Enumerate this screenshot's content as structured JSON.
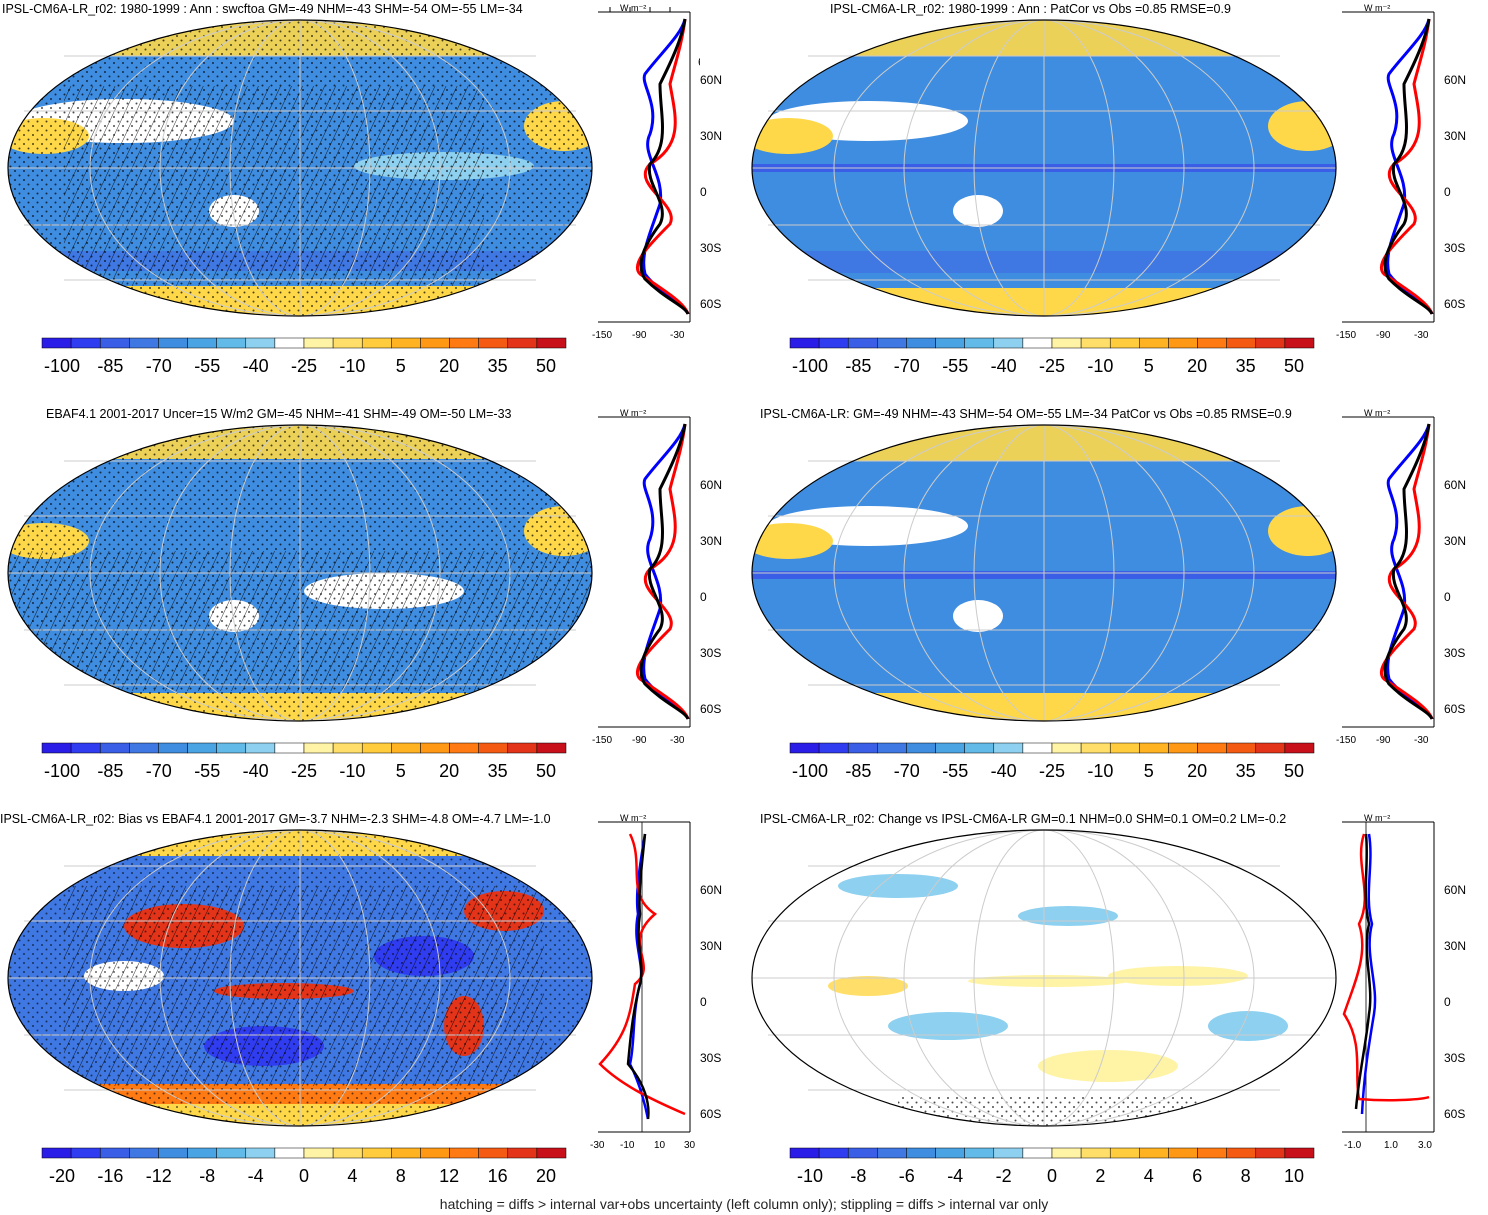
{
  "palette": [
    "#2a1de8",
    "#2f3cf0",
    "#3a5fe6",
    "#3f78e3",
    "#3f8de0",
    "#4aa3e3",
    "#62bae8",
    "#8dd0ef",
    "#ffffff",
    "#fff3a6",
    "#ffdf6a",
    "#ffcc3d",
    "#ffb322",
    "#ff9815",
    "#ff7a12",
    "#f55a12",
    "#e3341a",
    "#c8101a"
  ],
  "colors": {
    "ocean_blue": "#3f8de0",
    "land_yellow": "#ffd84a",
    "obs_line": "#0000ff",
    "model_line": "#000000",
    "bias_line": "#ff0000"
  },
  "profile_lat_labels": [
    "60N",
    "30N",
    "0",
    "30S",
    "60S"
  ],
  "profile_unit": "W m⁻²",
  "panels": [
    {
      "id": "p1",
      "title": "IPSL-CM6A-LR_r02: 1980-1999 : Ann : swcftoa GM=-49 NHM=-43 SHM=-54 OM=-55 LM=-34",
      "cbar_labels": [
        "-100",
        "-85",
        "-70",
        "-55",
        "-40",
        "-25",
        "-10",
        "5",
        "20",
        "35",
        "50"
      ],
      "profile_ticks": [
        "-150",
        "-90",
        "-30"
      ]
    },
    {
      "id": "p2",
      "title": "IPSL-CM6A-LR_r02: 1980-1999 : Ann : PatCor vs Obs =0.85 RMSE=0.9",
      "cbar_labels": [
        "-100",
        "-85",
        "-70",
        "-55",
        "-40",
        "-25",
        "-10",
        "5",
        "20",
        "35",
        "50"
      ],
      "profile_ticks": [
        "-150",
        "-90",
        "-30"
      ]
    },
    {
      "id": "p3",
      "title": "EBAF4.1 2001-2017 Uncer=15 W/m2 GM=-45 NHM=-41 SHM=-49 OM=-50 LM=-33",
      "cbar_labels": [
        "-100",
        "-85",
        "-70",
        "-55",
        "-40",
        "-25",
        "-10",
        "5",
        "20",
        "35",
        "50"
      ],
      "profile_ticks": [
        "-150",
        "-90",
        "-30"
      ]
    },
    {
      "id": "p4",
      "title": "IPSL-CM6A-LR: GM=-49 NHM=-43 SHM=-54 OM=-55 LM=-34 PatCor vs Obs =0.85 RMSE=0.9",
      "cbar_labels": [
        "-100",
        "-85",
        "-70",
        "-55",
        "-40",
        "-25",
        "-10",
        "5",
        "20",
        "35",
        "50"
      ],
      "profile_ticks": [
        "-150",
        "-90",
        "-30"
      ]
    },
    {
      "id": "p5",
      "title": "IPSL-CM6A-LR_r02: Bias vs EBAF4.1 2001-2017 GM=-3.7 NHM=-2.3 SHM=-4.8 OM=-4.7 LM=-1.0",
      "cbar_labels": [
        "-20",
        "-16",
        "-12",
        "-8",
        "-4",
        "0",
        "4",
        "8",
        "12",
        "16",
        "20"
      ],
      "profile_ticks": [
        "-30",
        "-10",
        "10",
        "30"
      ]
    },
    {
      "id": "p6",
      "title": "IPSL-CM6A-LR_r02: Change vs IPSL-CM6A-LR GM=0.1 NHM=0.0 SHM=0.1 OM=0.2 LM=-0.2",
      "cbar_labels": [
        "-10",
        "-8",
        "-6",
        "-4",
        "-2",
        "0",
        "2",
        "4",
        "6",
        "8",
        "10"
      ],
      "profile_ticks": [
        "-1.0",
        "1.0",
        "3.0"
      ]
    }
  ],
  "footnote": "hatching = diffs > internal var+obs uncertainty (left column only); stippling = diffs > internal var only"
}
